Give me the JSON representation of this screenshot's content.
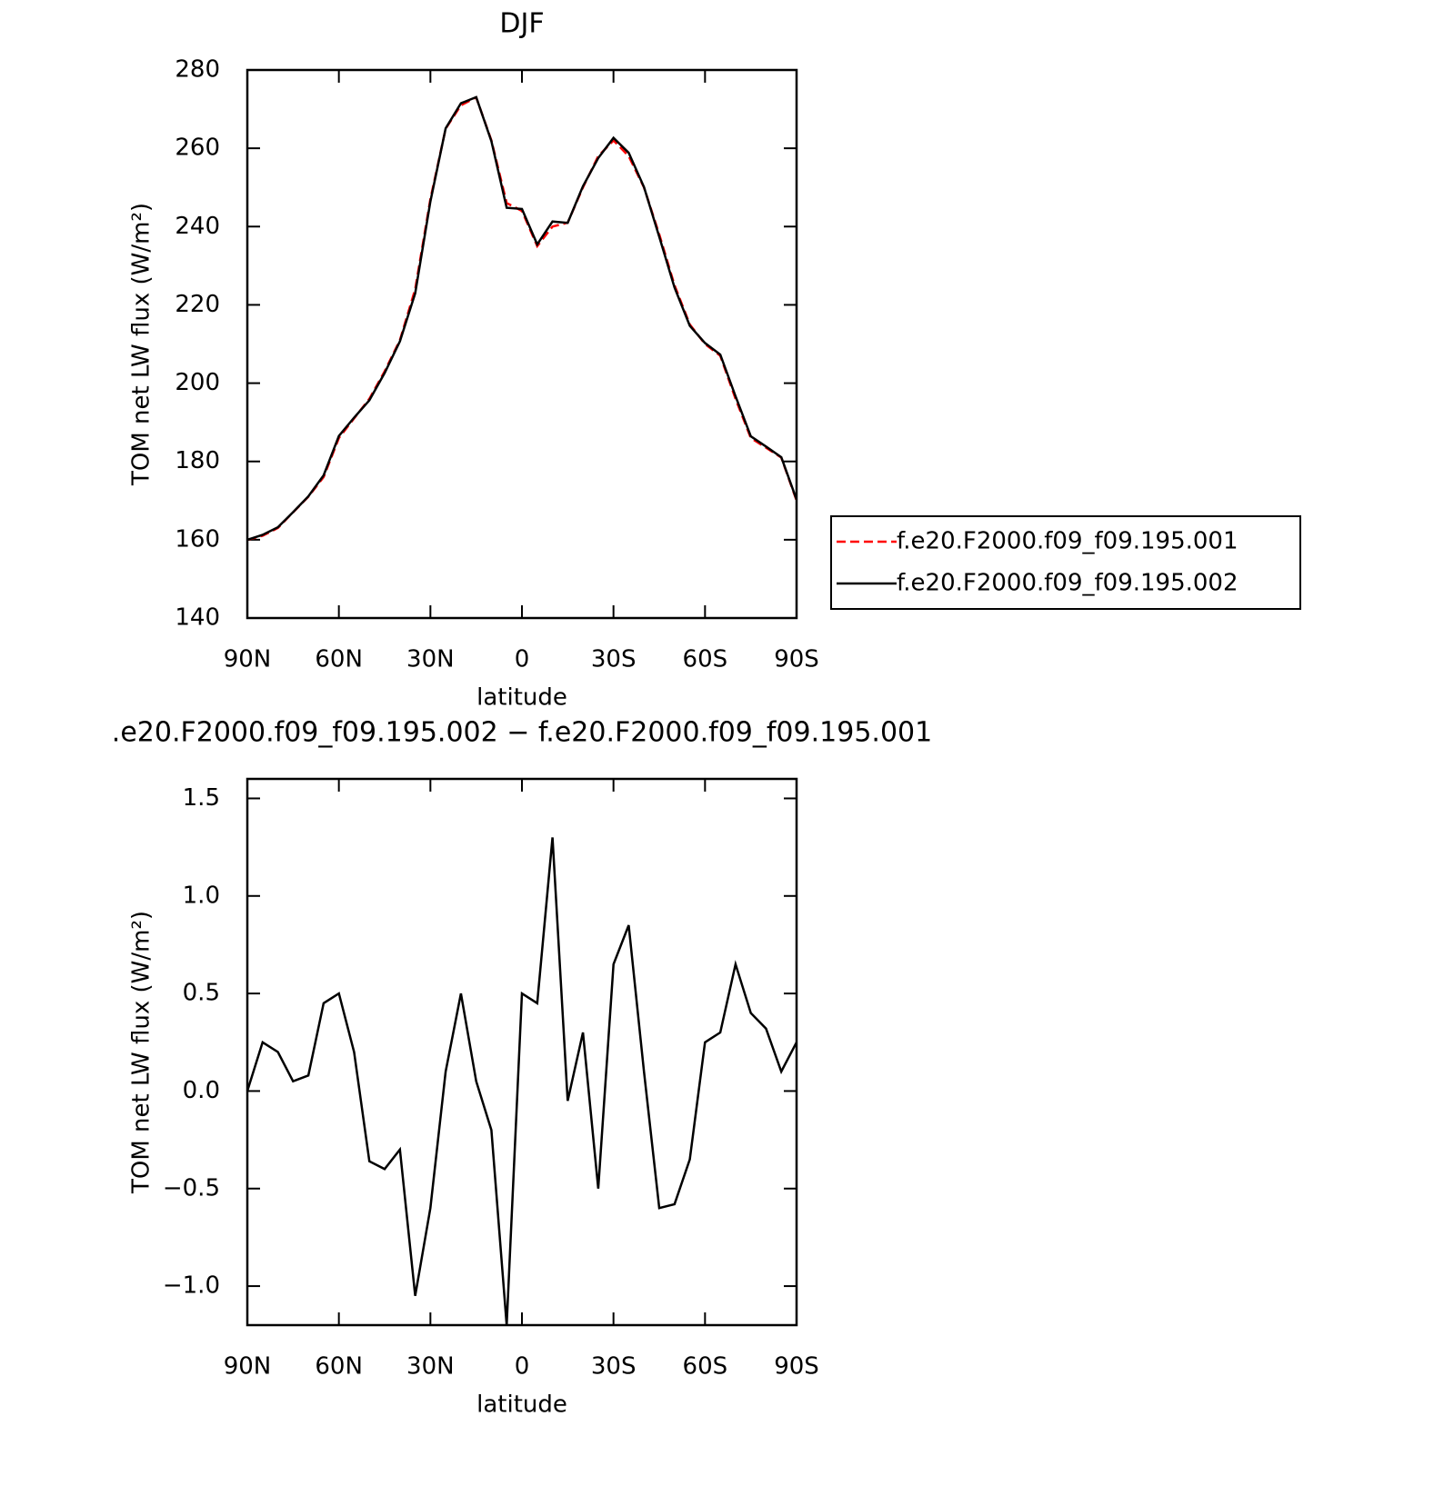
{
  "chart_data": [
    {
      "type": "line",
      "title": "DJF",
      "xlabel": "latitude",
      "ylabel": "TOM net LW flux (W/m²)",
      "x": [
        90,
        85,
        80,
        75,
        70,
        65,
        60,
        55,
        50,
        45,
        40,
        35,
        30,
        25,
        20,
        15,
        10,
        5,
        0,
        -5,
        -10,
        -15,
        -20,
        -25,
        -30,
        -35,
        -40,
        -45,
        -50,
        -55,
        -60,
        -65,
        -70,
        -75,
        -80,
        -85,
        -90
      ],
      "series": [
        {
          "name": "f.e20.F2000.f09_f09.195.001",
          "color": "#ff0000",
          "dash": true,
          "values": [
            160,
            161,
            163,
            167,
            171,
            176,
            186,
            191,
            196,
            203,
            211,
            224,
            247,
            265,
            271,
            273,
            262,
            246,
            244,
            235,
            240,
            241,
            250,
            258,
            262,
            258,
            250,
            238,
            225,
            215,
            210,
            207,
            196,
            186,
            183.5,
            181,
            170
          ]
        },
        {
          "name": "f.e20.F2000.f09_f09.195.002",
          "color": "#000000",
          "dash": false,
          "values": [
            160,
            161.25,
            163.2,
            167.05,
            171.08,
            176.45,
            186.5,
            191.2,
            195.64,
            202.6,
            210.7,
            222.95,
            246.4,
            265.1,
            271.5,
            273.05,
            261.8,
            244.8,
            244.5,
            235.45,
            241.3,
            240.95,
            250.3,
            257.5,
            262.65,
            258.85,
            250.1,
            237.4,
            224.42,
            214.65,
            210.25,
            207.3,
            196.65,
            186.4,
            183.82,
            181.1,
            170.25
          ]
        }
      ],
      "xlim": [
        90,
        -90
      ],
      "xticks": [
        {
          "value": 90,
          "label": "90N"
        },
        {
          "value": 60,
          "label": "60N"
        },
        {
          "value": 30,
          "label": "30N"
        },
        0,
        {
          "value": -30,
          "label": "30S"
        },
        {
          "value": -60,
          "label": "60S"
        },
        {
          "value": -90,
          "label": "90S"
        }
      ],
      "ylim": [
        140,
        280
      ],
      "yticks": [
        140,
        160,
        180,
        200,
        220,
        240,
        260,
        280
      ],
      "legend": "outside right"
    },
    {
      "type": "line",
      "title": ".e20.F2000.f09_f09.195.002 − f.e20.F2000.f09_f09.195.001",
      "xlabel": "latitude",
      "ylabel": "TOM net LW flux (W/m²)",
      "x": [
        90,
        85,
        80,
        75,
        70,
        65,
        60,
        55,
        50,
        45,
        40,
        35,
        30,
        25,
        20,
        15,
        10,
        5,
        0,
        -5,
        -10,
        -15,
        -20,
        -25,
        -30,
        -35,
        -40,
        -45,
        -50,
        -55,
        -60,
        -65,
        -70,
        -75,
        -80,
        -85,
        -90
      ],
      "series": [
        {
          "color": "#000000",
          "dash": false,
          "values": [
            0.0,
            0.25,
            0.2,
            0.05,
            0.08,
            0.45,
            0.5,
            0.2,
            -0.36,
            -0.4,
            -0.3,
            -1.05,
            -0.6,
            0.1,
            0.5,
            0.05,
            -0.2,
            -1.2,
            0.5,
            0.45,
            1.3,
            -0.05,
            0.3,
            -0.5,
            0.65,
            0.85,
            0.1,
            -0.6,
            -0.58,
            -0.35,
            0.25,
            0.3,
            0.65,
            0.4,
            0.32,
            0.1,
            0.25
          ]
        }
      ],
      "xlim": [
        90,
        -90
      ],
      "xticks": [
        {
          "value": 90,
          "label": "90N"
        },
        {
          "value": 60,
          "label": "60N"
        },
        {
          "value": 30,
          "label": "30N"
        },
        0,
        {
          "value": -30,
          "label": "30S"
        },
        {
          "value": -60,
          "label": "60S"
        },
        {
          "value": -90,
          "label": "90S"
        }
      ],
      "ylim": [
        -1.2,
        1.6
      ],
      "yticks": [
        {
          "value": -1.0,
          "label": "−1.0"
        },
        {
          "value": -0.5,
          "label": "−0.5"
        },
        {
          "value": 0.0,
          "label": "0.0"
        },
        {
          "value": 0.5,
          "label": "0.5"
        },
        {
          "value": 1.0,
          "label": "1.0"
        },
        {
          "value": 1.5,
          "label": "1.5"
        }
      ]
    }
  ]
}
